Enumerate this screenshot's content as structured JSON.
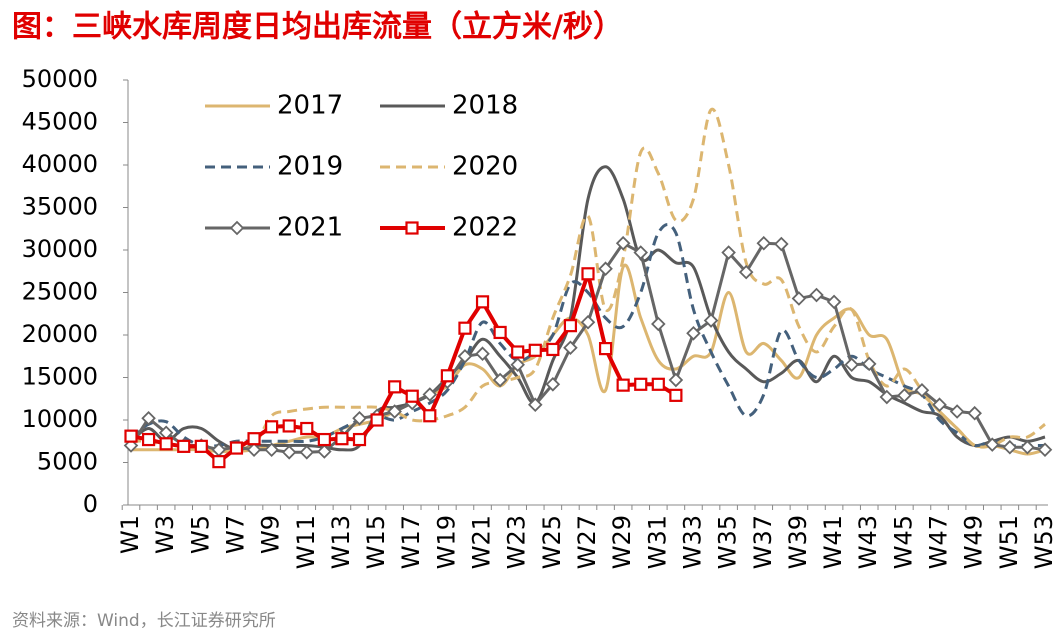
{
  "chart_data": {
    "type": "line",
    "title": "图：三峡水库周度日均出库流量（立方米/秒）",
    "source": "资料来源：Wind，长江证券研究所",
    "categories": [
      "W1",
      null,
      "W3",
      null,
      "W5",
      null,
      "W7",
      null,
      "W9",
      null,
      "W11",
      null,
      "W13",
      null,
      "W15",
      null,
      "W17",
      null,
      "W19",
      null,
      "W21",
      null,
      "W23",
      null,
      "W25",
      null,
      "W27",
      null,
      "W29",
      null,
      "W31",
      null,
      "W33",
      null,
      "W35",
      null,
      "W37",
      null,
      "W39",
      null,
      "W41",
      null,
      "W43",
      null,
      "W45",
      null,
      "W47",
      null,
      "W49",
      null,
      "W51",
      null,
      "W53"
    ],
    "ylim": [
      0,
      50000
    ],
    "yticks": [
      0,
      5000,
      10000,
      15000,
      20000,
      25000,
      30000,
      35000,
      40000,
      45000,
      50000
    ],
    "legend": "top-left",
    "series": [
      {
        "name": "2017",
        "color": "#dcb670",
        "dash": false,
        "smooth": true,
        "marker": null,
        "width": 3,
        "values": [
          6500,
          6500,
          6500,
          6500,
          6500,
          6300,
          6300,
          6500,
          7000,
          7500,
          8000,
          8000,
          9000,
          9500,
          10000,
          11000,
          12000,
          13000,
          14000,
          16500,
          16000,
          14000,
          16500,
          17500,
          20000,
          22000,
          20000,
          13500,
          28000,
          22000,
          17000,
          16000,
          17500,
          18000,
          25000,
          18000,
          19000,
          17000,
          15000,
          20000,
          22000,
          23000,
          20000,
          19500,
          14000,
          13000,
          11000,
          9000,
          7000,
          7000,
          6500,
          6000,
          6500
        ]
      },
      {
        "name": "2018",
        "color": "#595959",
        "dash": false,
        "smooth": true,
        "marker": null,
        "width": 3,
        "values": [
          7500,
          9000,
          7500,
          9000,
          9000,
          7500,
          6500,
          7000,
          7000,
          7000,
          7000,
          6800,
          6500,
          7000,
          11000,
          11500,
          12000,
          13000,
          15000,
          17000,
          19500,
          17500,
          15000,
          12000,
          17000,
          22000,
          36000,
          39800,
          36000,
          29000,
          30000,
          28500,
          28000,
          22000,
          18000,
          16000,
          14500,
          15500,
          17000,
          14500,
          17500,
          15000,
          14500,
          13000,
          12000,
          11000,
          10500,
          8000,
          7000,
          7500,
          8000,
          7500,
          8000
        ]
      },
      {
        "name": "2019",
        "color": "#44607c",
        "dash": true,
        "smooth": true,
        "marker": null,
        "width": 3,
        "values": [
          8000,
          9500,
          9800,
          8000,
          7000,
          7000,
          7500,
          7500,
          7500,
          7500,
          7500,
          8000,
          9000,
          10000,
          10500,
          10000,
          11000,
          12000,
          13500,
          17000,
          21500,
          19000,
          17000,
          18000,
          20000,
          26000,
          25000,
          22000,
          21000,
          25000,
          32000,
          32000,
          23000,
          18000,
          14000,
          10500,
          13000,
          20500,
          17000,
          15000,
          16000,
          17500,
          16000,
          15000,
          14000,
          13000,
          10000,
          8500,
          7000,
          7500,
          7000,
          7000,
          7000
        ]
      },
      {
        "name": "2020",
        "color": "#dcb670",
        "dash": true,
        "smooth": true,
        "marker": null,
        "width": 3,
        "values": [
          7500,
          7500,
          7000,
          6800,
          6500,
          6500,
          6800,
          7000,
          10500,
          11000,
          11300,
          11500,
          11500,
          11500,
          11500,
          11000,
          10000,
          10000,
          10500,
          11500,
          14000,
          14500,
          15000,
          16000,
          22000,
          27000,
          34000,
          23000,
          29000,
          41500,
          39000,
          33500,
          36000,
          46500,
          40000,
          28500,
          26000,
          26500,
          21000,
          18000,
          21000,
          23000,
          17000,
          14000,
          16000,
          13500,
          11000,
          9000,
          7000,
          7000,
          8000,
          8000,
          9500
        ]
      },
      {
        "name": "2021",
        "color": "#666666",
        "dash": false,
        "smooth": false,
        "marker": "diamond",
        "width": 3,
        "values": [
          7000,
          10200,
          8500,
          7000,
          7000,
          6500,
          6800,
          6500,
          6500,
          6200,
          6200,
          6300,
          8000,
          10200,
          10500,
          11000,
          12000,
          13000,
          14500,
          17500,
          17800,
          14700,
          16500,
          11800,
          14200,
          18500,
          21500,
          27800,
          30800,
          29700,
          21300,
          14700,
          20200,
          21700,
          29700,
          27400,
          30800,
          30700,
          24300,
          24700,
          23900,
          16500,
          16600,
          12700,
          12900,
          13500,
          11800,
          11000,
          10800,
          7100,
          6800,
          6800,
          6500
        ]
      },
      {
        "name": "2022",
        "color": "#e00000",
        "dash": false,
        "smooth": false,
        "marker": "square",
        "width": 4,
        "values": [
          8100,
          7700,
          7200,
          6900,
          6900,
          5100,
          6700,
          7800,
          9200,
          9300,
          9000,
          7700,
          7800,
          7700,
          10000,
          13900,
          12800,
          10500,
          15200,
          20800,
          23900,
          20300,
          18000,
          18200,
          18300,
          21100,
          27200,
          18400,
          14100,
          14200,
          14200,
          12900,
          null,
          null,
          null,
          null,
          null,
          null,
          null,
          null,
          null,
          null,
          null,
          null,
          null,
          null,
          null,
          null,
          null,
          null,
          null,
          null,
          null
        ]
      }
    ]
  }
}
